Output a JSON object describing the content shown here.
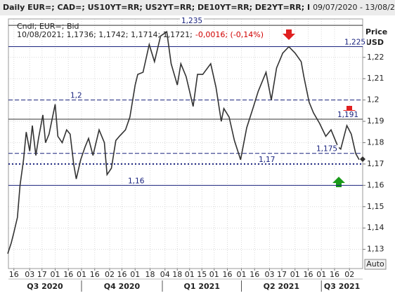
{
  "chart_data": {
    "type": "line",
    "title": "Daily EUR=; CAD=; US10YT=RR; US2YT=RR; DE10YT=RR; DE2YT=RR; I",
    "subtitle": "09/07/2020 - 13/08/2021 (GMT)",
    "legend_label": "Cndl; EUR=; Bid",
    "legend_ohlc": "10/08/2021; 1,1736; 1,1742; 1,1714; 1,1721;",
    "legend_change": "-0,0016; (-0,14%)",
    "y_axis_label": "Price",
    "y_axis_unit": "USD",
    "button_label": "Auto",
    "x": [
      "2020-07-09",
      "2020-07-13",
      "2020-07-16",
      "2020-07-20",
      "2020-07-23",
      "2020-07-27",
      "2020-07-30",
      "2020-08-03",
      "2020-08-06",
      "2020-08-10",
      "2020-08-13",
      "2020-08-18",
      "2020-08-21",
      "2020-08-25",
      "2020-08-28",
      "2020-09-01",
      "2020-09-04",
      "2020-09-09",
      "2020-09-14",
      "2020-09-18",
      "2020-09-22",
      "2020-09-25",
      "2020-09-30",
      "2020-10-05",
      "2020-10-09",
      "2020-10-14",
      "2020-10-21",
      "2020-10-27",
      "2020-10-30",
      "2020-11-04",
      "2020-11-09",
      "2020-11-13",
      "2020-11-20",
      "2020-11-25",
      "2020-12-01",
      "2020-12-04",
      "2020-12-10",
      "2020-12-17",
      "2020-12-23",
      "2020-12-30",
      "2021-01-06",
      "2021-01-11",
      "2021-01-18",
      "2021-01-22",
      "2021-01-28",
      "2021-02-05",
      "2021-02-10",
      "2021-02-16",
      "2021-02-25",
      "2021-03-03",
      "2021-03-09",
      "2021-03-12",
      "2021-03-18",
      "2021-03-24",
      "2021-03-31",
      "2021-04-07",
      "2021-04-14",
      "2021-04-20",
      "2021-04-29",
      "2021-05-05",
      "2021-05-11",
      "2021-05-18",
      "2021-05-25",
      "2021-06-01",
      "2021-06-08",
      "2021-06-11",
      "2021-06-17",
      "2021-06-22",
      "2021-06-29",
      "2021-07-06",
      "2021-07-12",
      "2021-07-20",
      "2021-07-23",
      "2021-07-30",
      "2021-08-04",
      "2021-08-09",
      "2021-08-13"
    ],
    "series": [
      {
        "name": "EUR=",
        "color": "#333333",
        "values": [
          1.128,
          1.133,
          1.138,
          1.145,
          1.16,
          1.172,
          1.185,
          1.176,
          1.188,
          1.174,
          1.182,
          1.193,
          1.18,
          1.184,
          1.19,
          1.198,
          1.183,
          1.18,
          1.186,
          1.184,
          1.17,
          1.163,
          1.172,
          1.178,
          1.182,
          1.174,
          1.186,
          1.18,
          1.165,
          1.168,
          1.181,
          1.183,
          1.186,
          1.192,
          1.207,
          1.212,
          1.213,
          1.226,
          1.218,
          1.23,
          1.232,
          1.217,
          1.207,
          1.217,
          1.211,
          1.197,
          1.212,
          1.212,
          1.217,
          1.206,
          1.19,
          1.196,
          1.192,
          1.181,
          1.172,
          1.187,
          1.196,
          1.204,
          1.213,
          1.2,
          1.215,
          1.222,
          1.225,
          1.222,
          1.218,
          1.211,
          1.199,
          1.194,
          1.189,
          1.183,
          1.186,
          1.178,
          1.177,
          1.188,
          1.184,
          1.175,
          1.172
        ]
      }
    ],
    "xlim": [
      "2020-07-09",
      "2021-08-13"
    ],
    "xticks": [
      {
        "value": "2020-07-16",
        "label": "16"
      },
      {
        "value": "2020-08-03",
        "label": "03"
      },
      {
        "value": "2020-08-17",
        "label": "17"
      },
      {
        "value": "2020-09-01",
        "label": "01"
      },
      {
        "value": "2020-09-16",
        "label": "16"
      },
      {
        "value": "2020-10-01",
        "label": "01"
      },
      {
        "value": "2020-10-16",
        "label": "16"
      },
      {
        "value": "2020-11-02",
        "label": "02"
      },
      {
        "value": "2020-11-16",
        "label": "16"
      },
      {
        "value": "2020-12-01",
        "label": "01"
      },
      {
        "value": "2020-12-18",
        "label": "18"
      },
      {
        "value": "2021-01-04",
        "label": "04"
      },
      {
        "value": "2021-01-18",
        "label": "18"
      },
      {
        "value": "2021-02-01",
        "label": "01"
      },
      {
        "value": "2021-02-15",
        "label": "15"
      },
      {
        "value": "2021-03-01",
        "label": "01"
      },
      {
        "value": "2021-03-16",
        "label": "16"
      },
      {
        "value": "2021-04-01",
        "label": "01"
      },
      {
        "value": "2021-04-16",
        "label": "16"
      },
      {
        "value": "2021-05-03",
        "label": "03"
      },
      {
        "value": "2021-05-17",
        "label": "17"
      },
      {
        "value": "2021-06-01",
        "label": "01"
      },
      {
        "value": "2021-06-16",
        "label": "16"
      },
      {
        "value": "2021-07-01",
        "label": "01"
      },
      {
        "value": "2021-07-16",
        "label": "16"
      },
      {
        "value": "2021-08-02",
        "label": "02"
      }
    ],
    "quarters": [
      "Q3 2020",
      "Q4 2020",
      "Q1 2021",
      "Q2 2021",
      "Q3 2021"
    ],
    "quarter_starts": [
      "2020-10-01",
      "2021-01-01",
      "2021-04-01",
      "2021-07-01"
    ],
    "ylim": [
      1.121,
      1.238
    ],
    "yticks": [
      {
        "value": 1.13,
        "label": "1,13"
      },
      {
        "value": 1.14,
        "label": "1,14"
      },
      {
        "value": 1.15,
        "label": "1,15"
      },
      {
        "value": 1.16,
        "label": "1,16"
      },
      {
        "value": 1.17,
        "label": "1,17"
      },
      {
        "value": 1.18,
        "label": "1,18"
      },
      {
        "value": 1.19,
        "label": "1,19"
      },
      {
        "value": 1.2,
        "label": "1,2"
      },
      {
        "value": 1.21,
        "label": "1,21"
      },
      {
        "value": 1.22,
        "label": "1,22"
      }
    ],
    "levels": [
      {
        "value": 1.235,
        "label": "1,235",
        "style": "solid"
      },
      {
        "value": 1.225,
        "label": "1,225",
        "style": "solid"
      },
      {
        "value": 1.2,
        "label": "1,2",
        "style": "dashed"
      },
      {
        "value": 1.191,
        "label": "1,191",
        "style": "solid"
      },
      {
        "value": 1.175,
        "label": "1,175",
        "style": "dashed"
      },
      {
        "value": 1.17,
        "label": "1,17",
        "style": "dotted"
      },
      {
        "value": 1.16,
        "label": "1,16",
        "style": "solid"
      }
    ],
    "grid": true
  }
}
